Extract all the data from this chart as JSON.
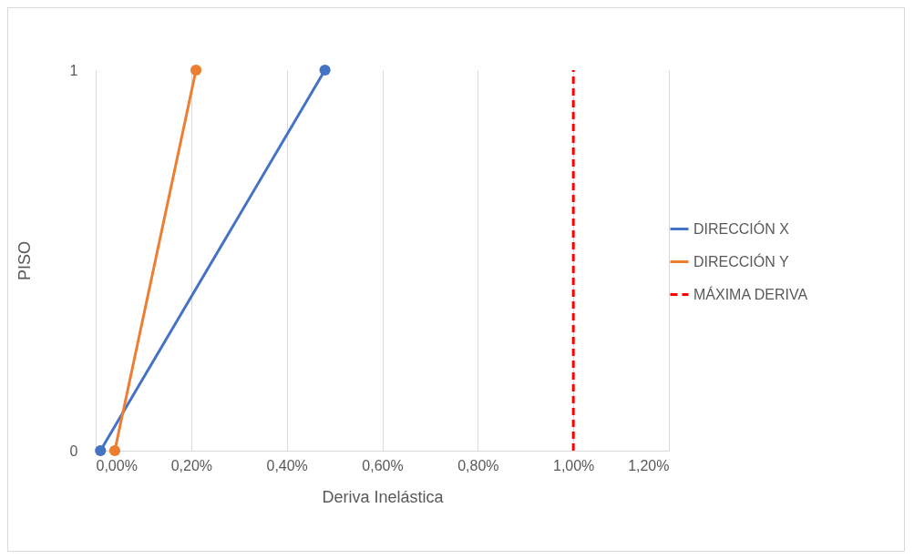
{
  "chart_data": {
    "type": "line",
    "xlabel": "Deriva Inelástica",
    "ylabel": "PISO",
    "xlim": [
      0,
      1.2
    ],
    "xticks": [
      {
        "value": 0,
        "label": "0,00%"
      },
      {
        "value": 0.2,
        "label": "0,20%"
      },
      {
        "value": 0.4,
        "label": "0,40%"
      },
      {
        "value": 0.6,
        "label": "0,60%"
      },
      {
        "value": 0.8,
        "label": "0,80%"
      },
      {
        "value": 1.0,
        "label": "1,00%"
      },
      {
        "value": 1.2,
        "label": "1,20%"
      }
    ],
    "ylim": [
      0,
      1
    ],
    "yticks": [
      0,
      1
    ],
    "grid": "x",
    "legend": "right",
    "series": [
      {
        "name": "DIRECCIÓN X",
        "color": "#4472c4",
        "x": [
          0.01,
          0.48
        ],
        "values": [
          0,
          1
        ],
        "marker": "circle",
        "line_style": "solid"
      },
      {
        "name": "DIRECCIÓN Y",
        "color": "#ed7d31",
        "x": [
          0.04,
          0.21
        ],
        "values": [
          0,
          1
        ],
        "marker": "circle",
        "line_style": "solid"
      },
      {
        "name": "MÁXIMA DERIVA",
        "color": "#ff0000",
        "x": [
          1.0,
          1.0
        ],
        "values": [
          0,
          1
        ],
        "marker": "none",
        "line_style": "dashed"
      }
    ]
  }
}
